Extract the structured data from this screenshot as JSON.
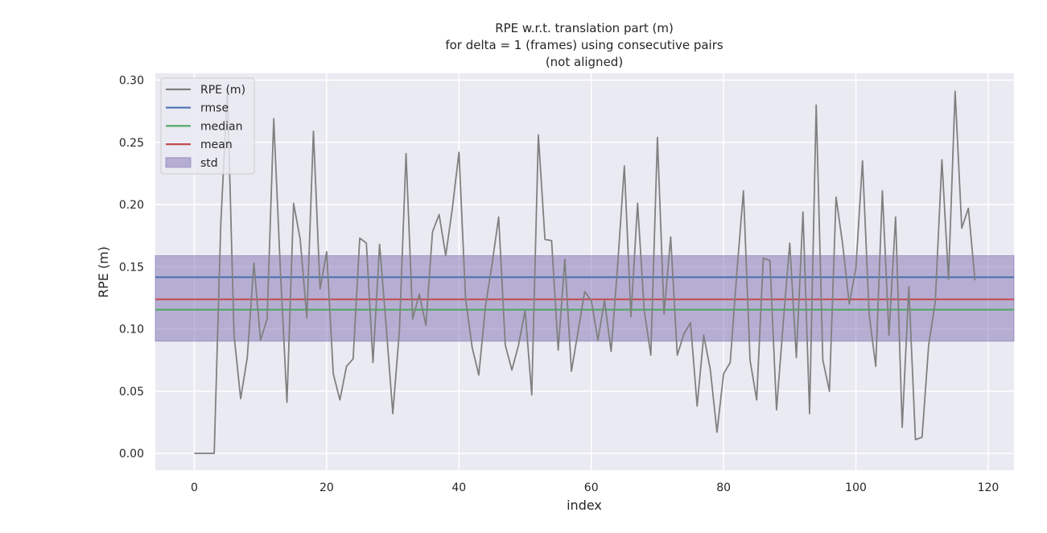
{
  "chart_data": {
    "type": "line",
    "title": "RPE w.r.t. translation part (m)\nfor delta = 1 (frames) using consecutive pairs\n(not aligned)",
    "title_lines": [
      "RPE w.r.t. translation part (m)",
      "for delta = 1 (frames) using consecutive pairs",
      "(not aligned)"
    ],
    "xlabel": "index",
    "ylabel": "RPE (m)",
    "xlim": [
      -5.9,
      123.9
    ],
    "ylim": [
      -0.0135,
      0.3055
    ],
    "xticks": [
      0,
      20,
      40,
      60,
      80,
      100,
      120
    ],
    "yticks": [
      0.0,
      0.05,
      0.1,
      0.15,
      0.2,
      0.25,
      0.3
    ],
    "xtick_labels": [
      "0",
      "20",
      "40",
      "60",
      "80",
      "100",
      "120"
    ],
    "ytick_labels": [
      "0.00",
      "0.05",
      "0.10",
      "0.15",
      "0.20",
      "0.25",
      "0.30"
    ],
    "grid": true,
    "legend_position": "upper-left",
    "series": [
      {
        "name": "RPE (m)",
        "color": "#808080",
        "x": [
          0,
          1,
          2,
          3,
          4,
          5,
          6,
          7,
          8,
          9,
          10,
          11,
          12,
          13,
          14,
          15,
          16,
          17,
          18,
          19,
          20,
          21,
          22,
          23,
          24,
          25,
          26,
          27,
          28,
          29,
          30,
          31,
          32,
          33,
          34,
          35,
          36,
          37,
          38,
          39,
          40,
          41,
          42,
          43,
          44,
          45,
          46,
          47,
          48,
          49,
          50,
          51,
          52,
          53,
          54,
          55,
          56,
          57,
          58,
          59,
          60,
          61,
          62,
          63,
          64,
          65,
          66,
          67,
          68,
          69,
          70,
          71,
          72,
          73,
          74,
          75,
          76,
          77,
          78,
          79,
          80,
          81,
          82,
          83,
          84,
          85,
          86,
          87,
          88,
          89,
          90,
          91,
          92,
          93,
          94,
          95,
          96,
          97,
          98,
          99,
          100,
          101,
          102,
          103,
          104,
          105,
          106,
          107,
          108,
          109,
          110,
          111,
          112,
          113,
          114,
          115,
          116,
          117,
          118
        ],
        "y": [
          0.0,
          0.0,
          0.0,
          0.0,
          0.185,
          0.292,
          0.095,
          0.044,
          0.077,
          0.153,
          0.091,
          0.108,
          0.269,
          0.148,
          0.041,
          0.201,
          0.172,
          0.109,
          0.259,
          0.132,
          0.162,
          0.064,
          0.043,
          0.07,
          0.076,
          0.173,
          0.169,
          0.073,
          0.168,
          0.102,
          0.032,
          0.099,
          0.241,
          0.108,
          0.128,
          0.103,
          0.178,
          0.192,
          0.159,
          0.197,
          0.242,
          0.124,
          0.085,
          0.063,
          0.118,
          0.152,
          0.19,
          0.087,
          0.067,
          0.087,
          0.115,
          0.047,
          0.256,
          0.172,
          0.171,
          0.083,
          0.156,
          0.066,
          0.098,
          0.13,
          0.123,
          0.091,
          0.123,
          0.082,
          0.152,
          0.231,
          0.11,
          0.201,
          0.115,
          0.079,
          0.254,
          0.112,
          0.174,
          0.079,
          0.096,
          0.105,
          0.038,
          0.095,
          0.067,
          0.017,
          0.064,
          0.073,
          0.145,
          0.211,
          0.075,
          0.043,
          0.157,
          0.155,
          0.035,
          0.104,
          0.169,
          0.077,
          0.194,
          0.032,
          0.28,
          0.075,
          0.05,
          0.206,
          0.168,
          0.12,
          0.149,
          0.235,
          0.112,
          0.07,
          0.211,
          0.095,
          0.19,
          0.021,
          0.134,
          0.011,
          0.013,
          0.087,
          0.122,
          0.236,
          0.14,
          0.291,
          0.181,
          0.197,
          0.139
        ]
      }
    ],
    "hlines": [
      {
        "name": "rmse",
        "value": 0.1416,
        "color": "#4c72b0"
      },
      {
        "name": "median",
        "value": 0.1155,
        "color": "#55a868"
      },
      {
        "name": "mean",
        "value": 0.1238,
        "color": "#c44e52"
      }
    ],
    "band": {
      "name": "std",
      "low": 0.0902,
      "high": 0.1589,
      "color": "#8172b2",
      "opacity": 0.5
    },
    "legend": [
      "RPE (m)",
      "rmse",
      "median",
      "mean",
      "std"
    ]
  }
}
